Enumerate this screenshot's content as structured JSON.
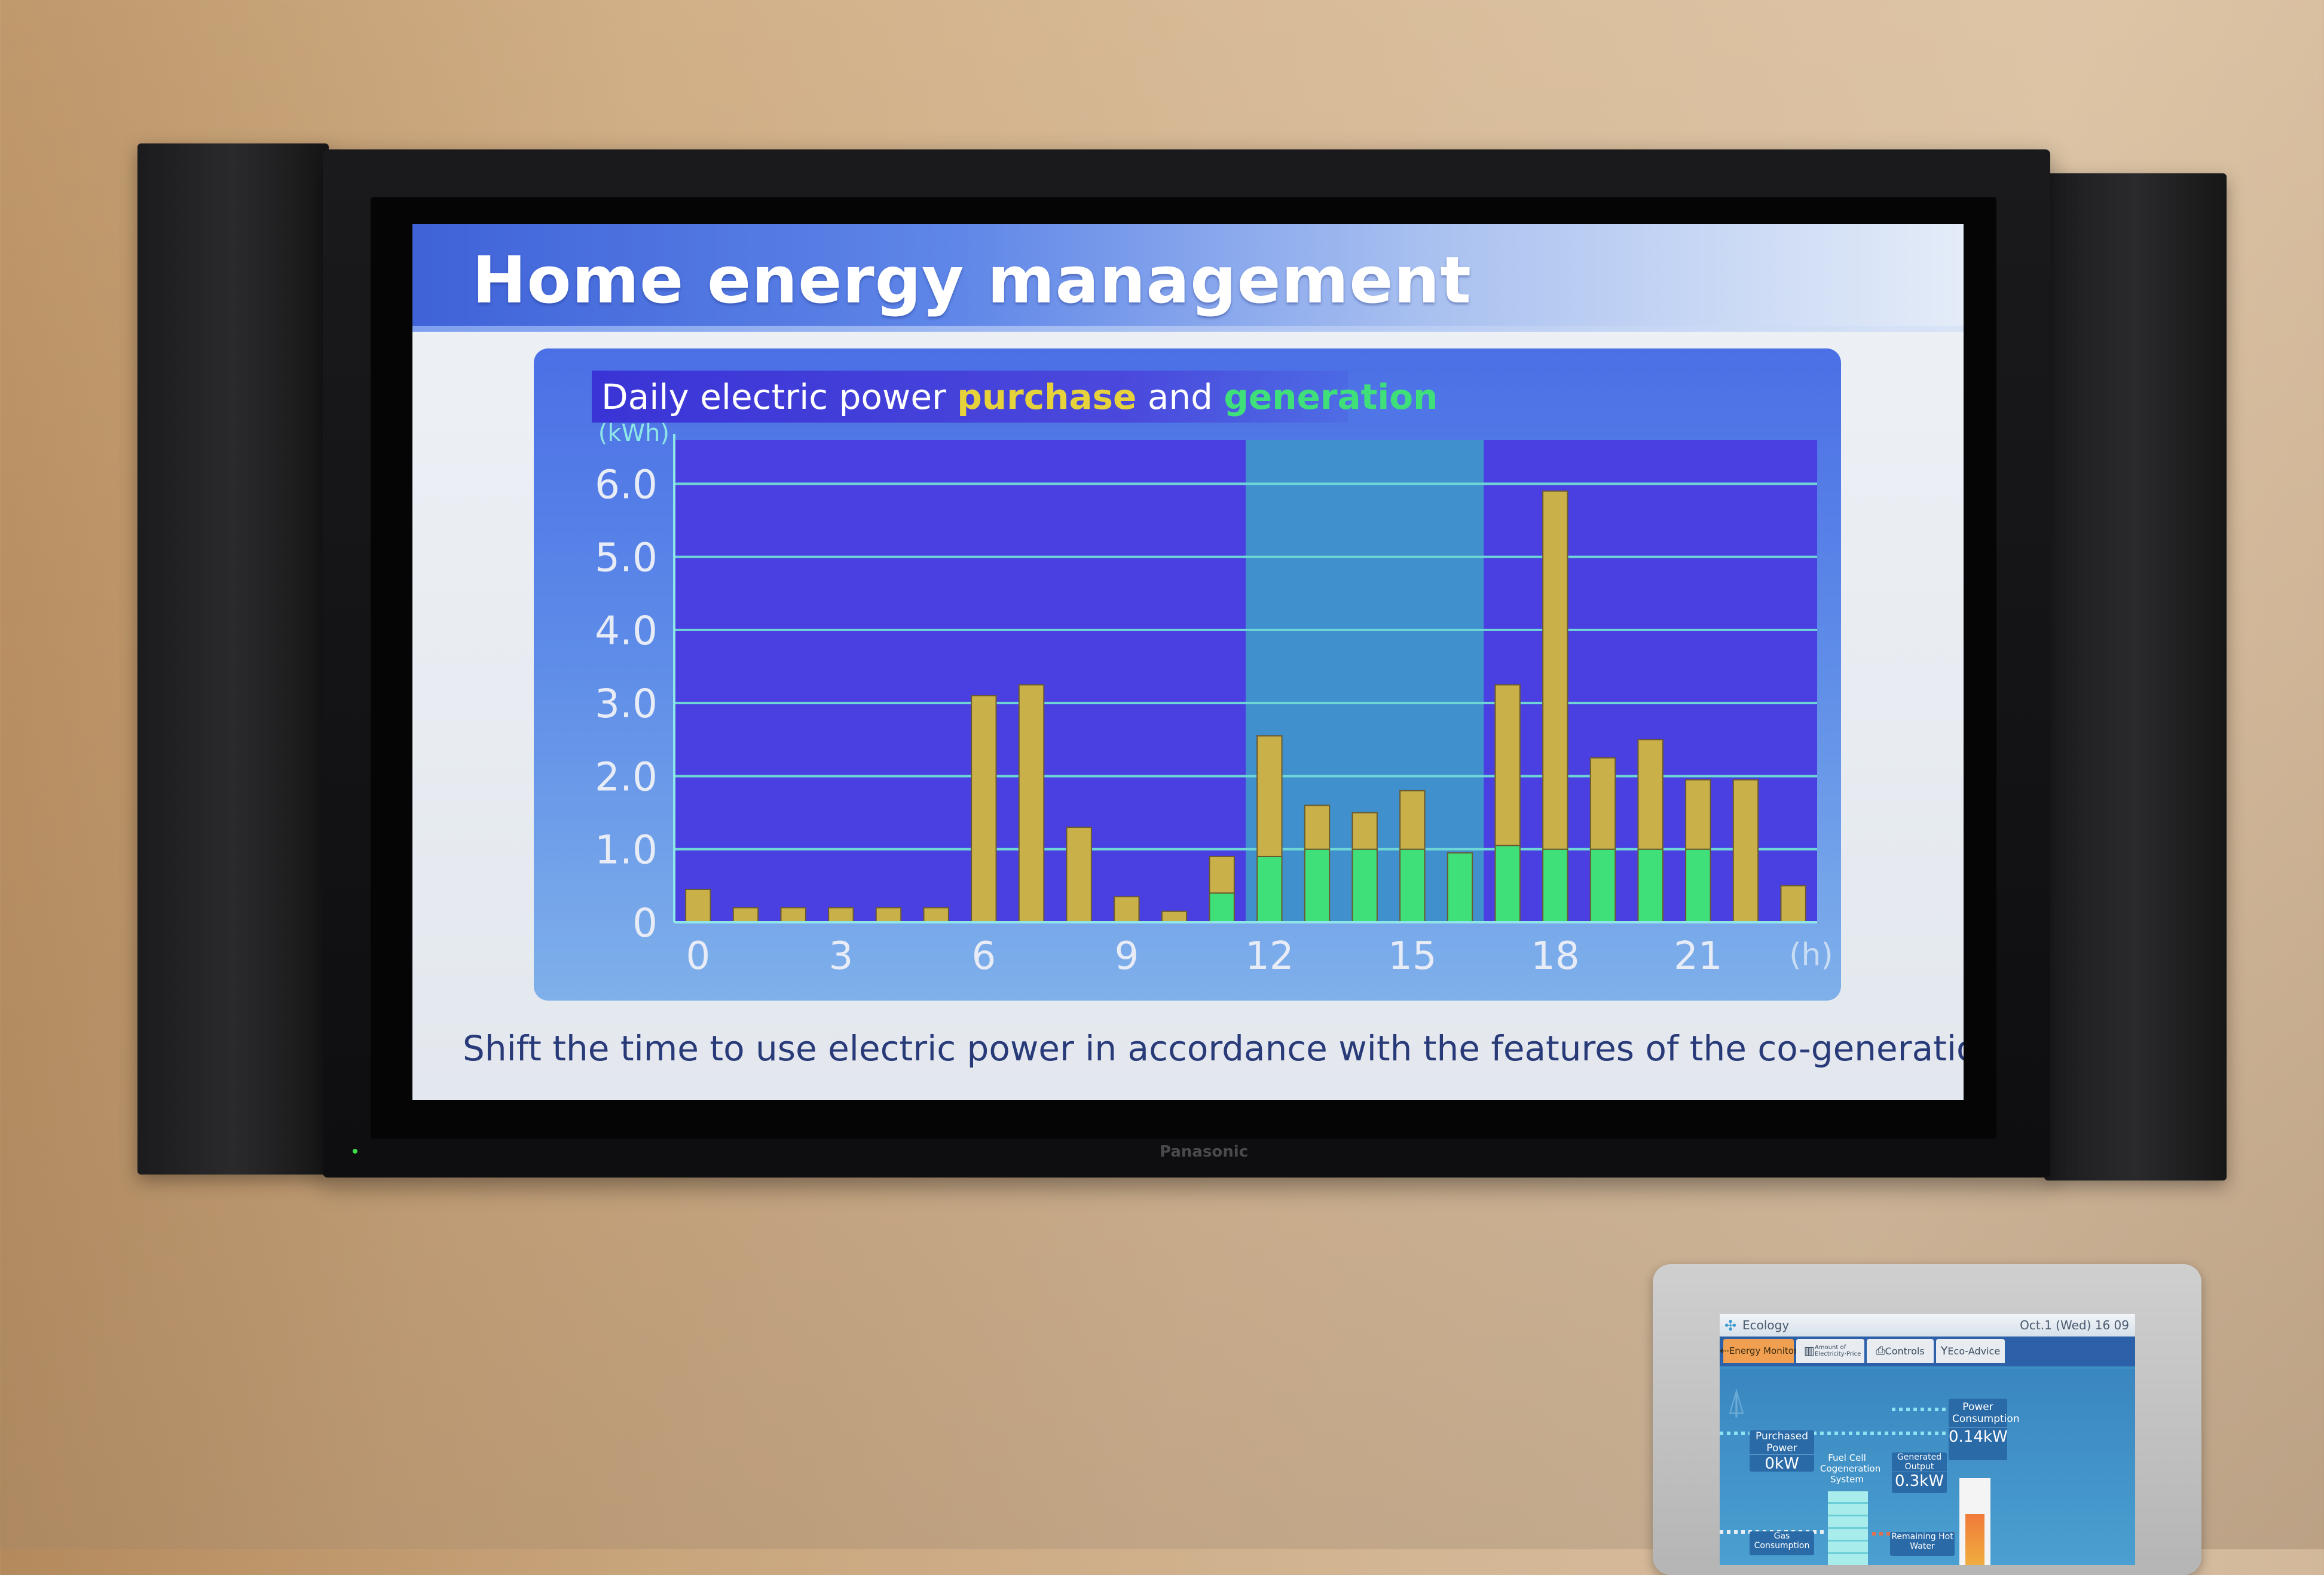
{
  "screen": {
    "title": "Home energy management",
    "caption": "Shift the time to use electric power in accordance with the features of the co-generation system.",
    "brand": "Panasonic"
  },
  "chart_data": {
    "type": "bar",
    "stacked": true,
    "title_parts": [
      "Daily electric power ",
      "purchase",
      " and ",
      "generation"
    ],
    "ylabel": "(kWh)",
    "xlabel": "(h)",
    "ylim": [
      0,
      6.6
    ],
    "xlim": [
      -0.5,
      23.5
    ],
    "yticks": [
      0,
      1.0,
      2.0,
      3.0,
      4.0,
      5.0,
      6.0
    ],
    "ytick_labels": [
      "0",
      "1.0",
      "2.0",
      "3.0",
      "4.0",
      "5.0",
      "6.0"
    ],
    "xticks": [
      0,
      3,
      6,
      9,
      12,
      15,
      18,
      21
    ],
    "xtick_labels": [
      "0",
      "3",
      "6",
      "9",
      "12",
      "15",
      "18",
      "21"
    ],
    "grid": true,
    "highlight_band": [
      11.5,
      16.5
    ],
    "x": [
      0,
      1,
      2,
      3,
      4,
      5,
      6,
      7,
      8,
      9,
      10,
      11,
      12,
      13,
      14,
      15,
      16,
      17,
      18,
      19,
      20,
      21,
      22,
      23
    ],
    "series": [
      {
        "name": "generation",
        "color": "#3fe07a",
        "values": [
          0,
          0,
          0,
          0,
          0,
          0,
          0,
          0,
          0,
          0,
          0,
          0.4,
          0.9,
          1.0,
          1.0,
          1.0,
          0.95,
          1.05,
          1.0,
          1.0,
          1.0,
          1.0,
          0,
          0
        ]
      },
      {
        "name": "purchase",
        "color": "#c9b048",
        "values": [
          0.45,
          0.2,
          0.2,
          0.2,
          0.2,
          0.2,
          3.1,
          3.25,
          1.3,
          0.35,
          0.15,
          0.5,
          1.65,
          0.6,
          0.5,
          0.8,
          0,
          2.2,
          4.9,
          1.25,
          1.5,
          0.95,
          1.95,
          0.5
        ]
      }
    ],
    "colors": {
      "plot_bg": "#4a3fe0",
      "band": "#3f90cc",
      "grid": "#6fd6d6",
      "title_purchase": "#e6d23a",
      "title_generation": "#3fe07a"
    }
  },
  "device": {
    "app": "Ecology",
    "datetime": "Oct.1 (Wed) 16 09",
    "tabs": [
      {
        "label": "Energy Monitor",
        "icon": "energy-flow-icon",
        "active": true
      },
      {
        "label": "Amount of Electricity·Price",
        "icon": "bar-chart-icon",
        "active": false
      },
      {
        "label": "Controls",
        "icon": "controller-icon",
        "active": false
      },
      {
        "label": "Eco-Advice",
        "icon": "sprout-icon",
        "active": false
      }
    ],
    "purchased_power": {
      "label": "Purchased Power",
      "value": "0kW"
    },
    "fuel_cell": "Fuel Cell Cogeneration System",
    "generated_output": {
      "label": "Generated Output",
      "value": "0.3kW"
    },
    "power_consumption": {
      "label": "Power Consumption",
      "value": "0.14kW"
    },
    "gas_consumption": {
      "label": "Gas Consumption"
    },
    "remaining_hot_water": {
      "label": "Remaining Hot Water"
    }
  }
}
